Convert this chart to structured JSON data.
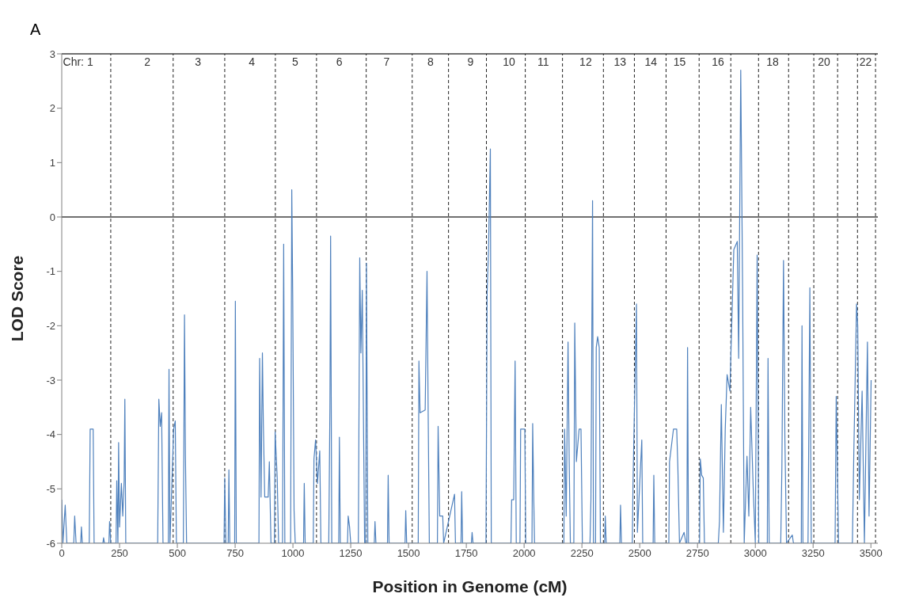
{
  "chart_data": {
    "type": "line",
    "title": "A",
    "xlabel": "Position in Genome (cM)",
    "ylabel": "LOD Score",
    "xlim": [
      0,
      3530
    ],
    "xticks": [
      0,
      250,
      500,
      750,
      1000,
      1250,
      1500,
      1750,
      2000,
      2250,
      2500,
      2750,
      3000,
      3250,
      3500
    ],
    "ylim": [
      -6,
      3
    ],
    "yticks": [
      -6,
      -5,
      -4,
      -3,
      -2,
      -1,
      0,
      1,
      2,
      3
    ],
    "marker": "none",
    "line_style": "solid",
    "series": [
      {
        "color": "#4f81bd",
        "x": [
          0,
          5,
          15,
          22,
          52,
          56,
          62,
          82,
          85,
          89,
          119,
          123,
          136,
          140,
          178,
          181,
          185,
          204,
          207,
          212,
          235,
          238,
          243,
          246,
          250,
          258,
          264,
          270,
          273,
          277,
          415,
          420,
          426,
          432,
          438,
          461,
          464,
          468,
          484,
          491,
          496,
          526,
          531,
          535,
          540,
          702,
          705,
          710,
          720,
          723,
          727,
          748,
          751,
          755,
          853,
          856,
          862,
          868,
          872,
          878,
          893,
          898,
          905,
          920,
          923,
          932,
          938,
          955,
          960,
          965,
          990,
          995,
          999,
          1005,
          1010,
          1046,
          1049,
          1053,
          1088,
          1091,
          1098,
          1106,
          1116,
          1121,
          1155,
          1160,
          1163,
          1168,
          1198,
          1201,
          1205,
          1236,
          1239,
          1245,
          1250,
          1283,
          1289,
          1294,
          1300,
          1310,
          1315,
          1318,
          1324,
          1352,
          1355,
          1359,
          1409,
          1412,
          1416,
          1485,
          1488,
          1492,
          1542,
          1545,
          1550,
          1572,
          1580,
          1585,
          1590,
          1625,
          1628,
          1635,
          1648,
          1652,
          1699,
          1703,
          1727,
          1730,
          1734,
          1772,
          1775,
          1779,
          1835,
          1840,
          1846,
          1854,
          1858,
          1943,
          1946,
          1955,
          1961,
          1966,
          1982,
          1985,
          2003,
          2007,
          2034,
          2037,
          2041,
          2045,
          2172,
          2175,
          2182,
          2190,
          2195,
          2200,
          2215,
          2219,
          2226,
          2238,
          2246,
          2252,
          2285,
          2289,
          2296,
          2300,
          2309,
          2312,
          2318,
          2325,
          2330,
          2348,
          2351,
          2355,
          2414,
          2417,
          2421,
          2468,
          2471,
          2486,
          2490,
          2509,
          2513,
          2558,
          2561,
          2565,
          2626,
          2629,
          2646,
          2660,
          2665,
          2672,
          2692,
          2700,
          2704,
          2707,
          2711,
          2759,
          2762,
          2768,
          2775,
          2780,
          2840,
          2845,
          2853,
          2862,
          2870,
          2878,
          2890,
          2907,
          2922,
          2928,
          2937,
          2945,
          2952,
          2964,
          2972,
          2980,
          2991,
          3000,
          3008,
          3015,
          3052,
          3055,
          3060,
          3110,
          3115,
          3122,
          3128,
          3135,
          3160,
          3165,
          3199,
          3202,
          3206,
          3228,
          3236,
          3242,
          3345,
          3350,
          3355,
          3360,
          3420,
          3426,
          3438,
          3443,
          3450,
          3462,
          3472,
          3485,
          3492,
          3501
        ],
        "values": [
          -5.2,
          -6,
          -5.3,
          -6,
          -6,
          -5.5,
          -6,
          -6,
          -5.7,
          -6,
          -6,
          -3.9,
          -3.9,
          -6,
          -6,
          -5.9,
          -6,
          -6,
          -5.6,
          -6,
          -6,
          -4.85,
          -6,
          -4.15,
          -5.7,
          -4.9,
          -5.5,
          -4.85,
          -3.35,
          -6,
          -6,
          -3.35,
          -3.85,
          -3.6,
          -6,
          -6,
          -2.8,
          -6,
          -3.9,
          -3.75,
          -6,
          -6,
          -1.8,
          -4.4,
          -6,
          -6,
          -4.8,
          -6,
          -6,
          -4.65,
          -6,
          -6,
          -1.55,
          -6,
          -6,
          -2.6,
          -5.15,
          -2.5,
          -3.8,
          -5.15,
          -5.15,
          -4.5,
          -6,
          -6,
          -3.95,
          -4.8,
          -6,
          -6,
          -0.5,
          -6,
          -6,
          0.5,
          -1.4,
          -5.4,
          -6,
          -6,
          -4.9,
          -6,
          -6,
          -4.45,
          -4.1,
          -4.9,
          -4.3,
          -6,
          -6,
          -3.5,
          -0.35,
          -6,
          -6,
          -4.05,
          -6,
          -6,
          -5.5,
          -5.7,
          -6,
          -6,
          -0.75,
          -2.5,
          -1.35,
          -6,
          -6,
          -0.85,
          -6,
          -6,
          -5.6,
          -6,
          -6,
          -4.75,
          -6,
          -6,
          -5.4,
          -6,
          -6,
          -2.65,
          -3.6,
          -3.55,
          -1.0,
          -3.6,
          -6,
          -6,
          -3.85,
          -5.5,
          -5.5,
          -6,
          -5.1,
          -6,
          -6,
          -5.05,
          -6,
          -6,
          -5.8,
          -6,
          -6,
          -1.4,
          -0.6,
          1.25,
          -6,
          -6,
          -5.2,
          -5.2,
          -2.65,
          -6,
          -6,
          -3.9,
          -3.9,
          -6,
          -6,
          -3.8,
          -5,
          -6,
          -6,
          -3.9,
          -5.5,
          -2.3,
          -4.5,
          -6,
          -6,
          -1.95,
          -4.5,
          -3.9,
          -3.9,
          -6,
          -6,
          -5.2,
          0.3,
          -6,
          -6,
          -2.4,
          -2.2,
          -2.4,
          -6,
          -6,
          -5.5,
          -6,
          -6,
          -5.3,
          -6,
          -6,
          -4.9,
          -1.6,
          -5.8,
          -4.1,
          -6,
          -6,
          -4.75,
          -6,
          -6,
          -4.5,
          -3.9,
          -3.9,
          -4.6,
          -6,
          -5.8,
          -6,
          -6,
          -2.4,
          -6,
          -6,
          -4.45,
          -4.75,
          -4.8,
          -6,
          -6,
          -5.6,
          -3.45,
          -5.8,
          -3.9,
          -2.9,
          -3.2,
          -0.6,
          -0.45,
          -2.6,
          2.7,
          -1.3,
          -6,
          -4.4,
          -5.5,
          -3.5,
          -5,
          -6,
          -0.7,
          -6,
          -6,
          -2.6,
          -6,
          -6,
          -4.6,
          -0.8,
          -4.1,
          -6,
          -5.85,
          -6,
          -6,
          -2.0,
          -6,
          -6,
          -1.3,
          -6,
          -6,
          -3.3,
          -4.6,
          -6,
          -6,
          -4.35,
          -1.6,
          -2.0,
          -5.2,
          -3.2,
          -6,
          -2.3,
          -5.5,
          -3.0
        ]
      }
    ],
    "ref_lines": [
      {
        "axis": "y",
        "value": 3,
        "color": "#404040",
        "line_style": "solid"
      },
      {
        "axis": "y",
        "value": 0,
        "color": "#404040",
        "line_style": "solid"
      },
      {
        "axis": "x",
        "value": 212,
        "line_style": "dashed"
      },
      {
        "axis": "x",
        "value": 482,
        "line_style": "dashed"
      },
      {
        "axis": "x",
        "value": 705,
        "line_style": "dashed"
      },
      {
        "axis": "x",
        "value": 924,
        "line_style": "dashed"
      },
      {
        "axis": "x",
        "value": 1102,
        "line_style": "dashed"
      },
      {
        "axis": "x",
        "value": 1317,
        "line_style": "dashed"
      },
      {
        "axis": "x",
        "value": 1516,
        "line_style": "dashed"
      },
      {
        "axis": "x",
        "value": 1673,
        "line_style": "dashed"
      },
      {
        "axis": "x",
        "value": 1837,
        "line_style": "dashed"
      },
      {
        "axis": "x",
        "value": 2005,
        "line_style": "dashed"
      },
      {
        "axis": "x",
        "value": 2166,
        "line_style": "dashed"
      },
      {
        "axis": "x",
        "value": 2343,
        "line_style": "dashed"
      },
      {
        "axis": "x",
        "value": 2477,
        "line_style": "dashed"
      },
      {
        "axis": "x",
        "value": 2614,
        "line_style": "dashed"
      },
      {
        "axis": "x",
        "value": 2757,
        "line_style": "dashed"
      },
      {
        "axis": "x",
        "value": 2894,
        "line_style": "dashed"
      },
      {
        "axis": "x",
        "value": 3014,
        "line_style": "dashed"
      },
      {
        "axis": "x",
        "value": 3144,
        "line_style": "dashed"
      },
      {
        "axis": "x",
        "value": 3253,
        "line_style": "dashed"
      },
      {
        "axis": "x",
        "value": 3356,
        "line_style": "dashed"
      },
      {
        "axis": "x",
        "value": 3442,
        "line_style": "dashed"
      },
      {
        "axis": "x",
        "value": 3520,
        "line_style": "dashed"
      }
    ],
    "annotations": [
      "Chr: 1",
      "2",
      "3",
      "4",
      "5",
      "6",
      "7",
      "8",
      "9",
      "10",
      "11",
      "12",
      "13",
      "14",
      "15",
      "16",
      "18",
      "20",
      "22"
    ]
  }
}
